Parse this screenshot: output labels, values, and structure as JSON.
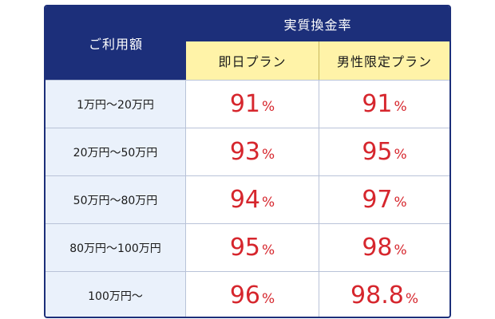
{
  "table": {
    "amount_header": "ご利用額",
    "rate_header": "実質換金率",
    "plans": [
      "即日プラン",
      "男性限定プラン"
    ],
    "percent_sign": "%",
    "rows": [
      {
        "amount": "1万円～20万円",
        "plan1": "91",
        "plan2": "91"
      },
      {
        "amount": "20万円～50万円",
        "plan1": "93",
        "plan2": "95"
      },
      {
        "amount": "50万円～80万円",
        "plan1": "94",
        "plan2": "97"
      },
      {
        "amount": "80万円～100万円",
        "plan1": "95",
        "plan2": "98"
      },
      {
        "amount": "100万円～",
        "plan1": "96",
        "plan2": "98.8"
      }
    ]
  },
  "colors": {
    "header_bg": "#1c2f7a",
    "plan_bg": "#fff3a8",
    "amount_bg": "#eaf1fb",
    "value_text": "#d6262d"
  }
}
